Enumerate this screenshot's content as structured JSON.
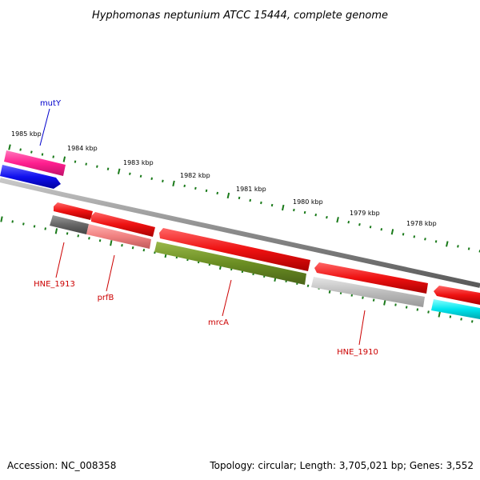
{
  "title": "Hyphomonas neptunium ATCC 15444, complete genome",
  "footer": {
    "accession": "Accession: NC_008358",
    "summary": "Topology: circular; Length: 3,705,021 bp; Genes: 3,552"
  },
  "scale_labels": [
    "1985 kbp",
    "1984 kbp",
    "1983 kbp",
    "1982 kbp",
    "1981 kbp",
    "1980 kbp",
    "1979 kbp",
    "1978 kbp"
  ],
  "gene_labels": [
    {
      "name": "mutY",
      "color": "#0000cc"
    },
    {
      "name": "HNE_1913",
      "color": "#cc0000"
    },
    {
      "name": "prfB",
      "color": "#cc0000"
    },
    {
      "name": "mrcA",
      "color": "#cc0000"
    },
    {
      "name": "HNE_1910",
      "color": "#cc0000"
    }
  ],
  "colors": {
    "backbone": "#8a8a8a",
    "tick": "#1a7a1a",
    "forward_gene": "#ee1111",
    "reverse_gene_pink": "#ff1f8f",
    "blue_gene": "#1010ee",
    "dark_gray_gene": "#666666",
    "salmon_gene": "#f08080",
    "olive_gene": "#6b8e23",
    "light_gray_gene": "#bdbdbd",
    "cyan_gene": "#00e5ee"
  }
}
